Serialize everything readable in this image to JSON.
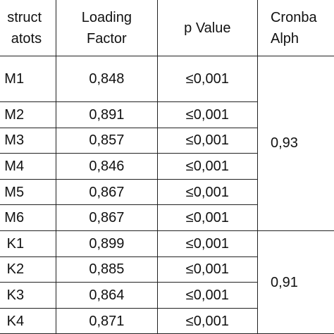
{
  "header": {
    "cells": [
      [
        "struct",
        "atots"
      ],
      [
        "Loading",
        "Factor"
      ],
      [
        "p Value"
      ],
      [
        "Cronba",
        "Alph"
      ]
    ]
  },
  "table": {
    "rows": [
      [
        "M1",
        "0,848",
        "≤0,001"
      ],
      [
        "M2",
        "0,891",
        "≤0,001"
      ],
      [
        "M3",
        "0,857",
        "≤0,001"
      ],
      [
        "M4",
        "0,846",
        "≤0,001"
      ],
      [
        "M5",
        "0,867",
        "≤0,001"
      ],
      [
        "M6",
        "0,867",
        "≤0,001"
      ],
      [
        "K1",
        "0,899",
        "≤0,001"
      ],
      [
        "K2",
        "0,885",
        "≤0,001"
      ],
      [
        "K3",
        "0,864",
        "≤0,001"
      ],
      [
        "K4",
        "0,871",
        "≤0,001"
      ]
    ],
    "reliability": [
      {
        "value": "0,93",
        "rows": 6
      },
      {
        "value": "0,91",
        "rows": 4
      }
    ]
  }
}
